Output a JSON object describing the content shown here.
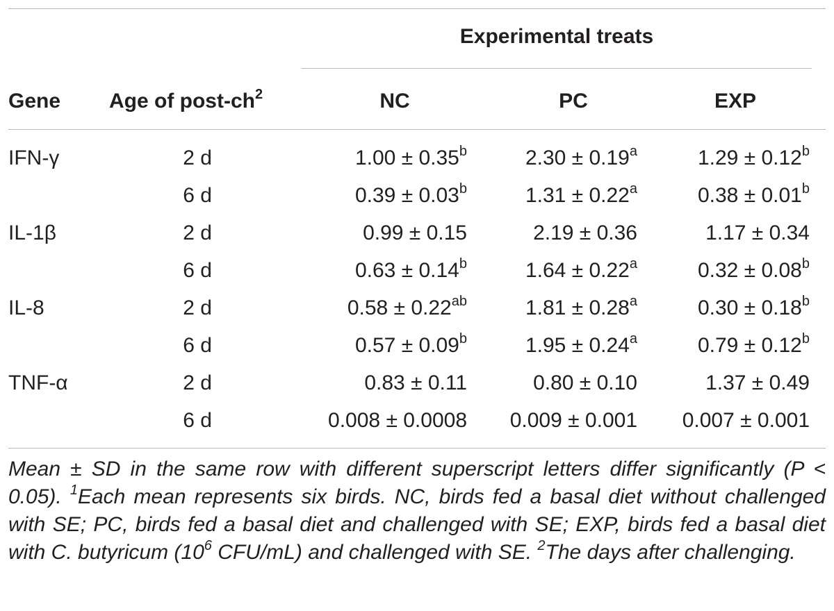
{
  "table": {
    "group_header": "Experimental treats",
    "columns": {
      "gene": "Gene",
      "age": "Age of post-ch",
      "age_sup": "2",
      "nc": "NC",
      "pc": "PC",
      "exp": "EXP"
    },
    "rows": [
      {
        "gene": "IFN-γ",
        "age": "2 d",
        "nc": "1.00 ± 0.35",
        "nc_sup": "b",
        "pc": "2.30 ± 0.19",
        "pc_sup": "a",
        "exp": "1.29 ± 0.12",
        "exp_sup": "b"
      },
      {
        "gene": "",
        "age": "6 d",
        "nc": "0.39 ± 0.03",
        "nc_sup": "b",
        "pc": "1.31 ± 0.22",
        "pc_sup": "a",
        "exp": "0.38 ± 0.01",
        "exp_sup": "b"
      },
      {
        "gene": "IL-1β",
        "age": "2 d",
        "nc": "0.99 ± 0.15",
        "nc_sup": "",
        "pc": "2.19 ± 0.36",
        "pc_sup": "",
        "exp": "1.17 ± 0.34",
        "exp_sup": ""
      },
      {
        "gene": "",
        "age": "6 d",
        "nc": "0.63 ± 0.14",
        "nc_sup": "b",
        "pc": "1.64 ± 0.22",
        "pc_sup": "a",
        "exp": "0.32 ± 0.08",
        "exp_sup": "b"
      },
      {
        "gene": "IL-8",
        "age": "2 d",
        "nc": "0.58 ± 0.22",
        "nc_sup": "ab",
        "pc": "1.81 ± 0.28",
        "pc_sup": "a",
        "exp": "0.30 ± 0.18",
        "exp_sup": "b"
      },
      {
        "gene": "",
        "age": "6 d",
        "nc": "0.57 ± 0.09",
        "nc_sup": "b",
        "pc": "1.95 ± 0.24",
        "pc_sup": "a",
        "exp": "0.79 ± 0.12",
        "exp_sup": "b"
      },
      {
        "gene": "TNF-α",
        "age": "2 d",
        "nc": "0.83 ± 0.11",
        "nc_sup": "",
        "pc": "0.80 ± 0.10",
        "pc_sup": "",
        "exp": "1.37 ± 0.49",
        "exp_sup": ""
      },
      {
        "gene": "",
        "age": "6 d",
        "nc": "0.008 ± 0.0008",
        "nc_sup": "",
        "pc": "0.009 ± 0.001",
        "pc_sup": "",
        "exp": "0.007 ± 0.001",
        "exp_sup": ""
      }
    ]
  },
  "footnote": {
    "p1": "Mean ± SD in the same row with different superscript letters differ significantly (P < 0.05). ",
    "sup1": "1",
    "p2": "Each mean represents six birds. NC, birds fed a basal diet without challenged with SE; PC, birds fed a basal diet and challenged with SE; EXP, birds fed a basal diet with C. butyricum (10",
    "sup6": "6",
    "p3": " CFU/mL) and challenged with SE. ",
    "sup2": "2",
    "p4": "The days after challenging."
  },
  "colors": {
    "text": "#231f20",
    "rule": "#b9b9b9"
  }
}
